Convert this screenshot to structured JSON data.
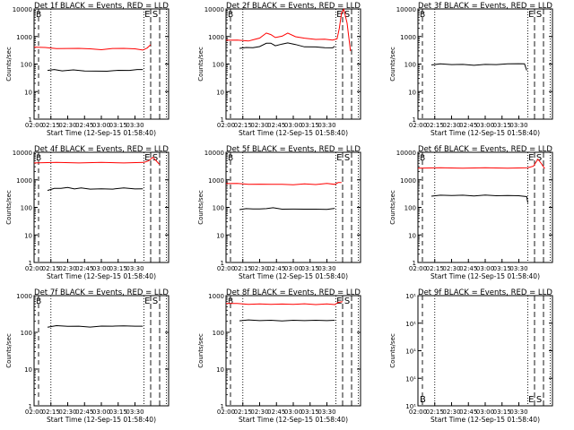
{
  "colors": {
    "events": "#000000",
    "lld": "#ff0000",
    "axes": "#000000",
    "background": "#ffffff"
  },
  "chart_data": [
    {
      "type": "line",
      "title": "Det 1f BLACK = Events, RED = LLD",
      "xlabel": "Start Time (12-Sep-15 01:58:40)",
      "ylabel": "Counts/sec",
      "xticks": [
        "02:00",
        "02:15",
        "02:30",
        "02:45",
        "03:00",
        "03:15",
        "03:30"
      ],
      "yticks": [
        "1",
        "10",
        "100",
        "1000",
        "10000"
      ],
      "yscale": "log",
      "ylim": [
        1,
        10000
      ],
      "markers": [
        "E",
        "S"
      ],
      "series": [
        {
          "color": "red",
          "points": [
            [
              0,
              420
            ],
            [
              10,
              390
            ],
            [
              20,
              370
            ],
            [
              30,
              360
            ],
            [
              40,
              380
            ],
            [
              50,
              350
            ],
            [
              60,
              340
            ],
            [
              70,
              360
            ],
            [
              80,
              380
            ],
            [
              90,
              350
            ],
            [
              97,
              330
            ],
            [
              101,
              380
            ],
            [
              104,
              520
            ]
          ]
        },
        {
          "color": "black",
          "points": [
            [
              12,
              60
            ],
            [
              18,
              62
            ],
            [
              25,
              58
            ],
            [
              35,
              60
            ],
            [
              45,
              57
            ],
            [
              55,
              54
            ],
            [
              65,
              56
            ],
            [
              75,
              58
            ],
            [
              85,
              60
            ],
            [
              92,
              62
            ],
            [
              97,
              65
            ]
          ]
        }
      ]
    },
    {
      "type": "line",
      "title": "Det 2f BLACK = Events, RED = LLD",
      "xlabel": "Start Time (12-Sep-15 01:58:40)",
      "ylabel": "Counts/sec",
      "xticks": [
        "02:00",
        "02:15",
        "02:30",
        "02:45",
        "03:00",
        "03:15",
        "03:30"
      ],
      "yticks": [
        "1",
        "10",
        "100",
        "1000",
        "10000"
      ],
      "yscale": "log",
      "ylim": [
        1,
        10000
      ],
      "markers": [
        "E",
        "S"
      ],
      "series": [
        {
          "color": "red",
          "points": [
            [
              0,
              750
            ],
            [
              10,
              720
            ],
            [
              20,
              700
            ],
            [
              25,
              760
            ],
            [
              30,
              900
            ],
            [
              36,
              1300
            ],
            [
              40,
              1200
            ],
            [
              44,
              900
            ],
            [
              50,
              1050
            ],
            [
              55,
              1300
            ],
            [
              62,
              1000
            ],
            [
              70,
              850
            ],
            [
              80,
              800
            ],
            [
              88,
              780
            ],
            [
              95,
              760
            ],
            [
              99,
              800
            ],
            [
              101,
              2000
            ],
            [
              103,
              7000
            ],
            [
              105,
              10000
            ],
            [
              108,
              3000
            ],
            [
              111,
              300
            ]
          ]
        },
        {
          "color": "black",
          "points": [
            [
              12,
              380
            ],
            [
              18,
              390
            ],
            [
              24,
              400
            ],
            [
              30,
              420
            ],
            [
              36,
              580
            ],
            [
              40,
              560
            ],
            [
              44,
              470
            ],
            [
              50,
              520
            ],
            [
              55,
              600
            ],
            [
              62,
              500
            ],
            [
              70,
              430
            ],
            [
              80,
              410
            ],
            [
              88,
              400
            ],
            [
              95,
              380
            ],
            [
              97,
              450
            ]
          ]
        }
      ]
    },
    {
      "type": "line",
      "title": "Det 3f BLACK = Events, RED = LLD",
      "xlabel": "Start Time (12-Sep-15 01:58:40)",
      "ylabel": "Counts/sec",
      "xticks": [
        "02:00",
        "02:15",
        "02:30",
        "02:45",
        "03:00",
        "03:15",
        "03:30"
      ],
      "yticks": [
        "1",
        "10",
        "100",
        "1000",
        "10000"
      ],
      "yscale": "log",
      "ylim": [
        1,
        10000
      ],
      "markers": [
        "E",
        "S"
      ],
      "series": [
        {
          "color": "black",
          "points": [
            [
              12,
              95
            ],
            [
              20,
              100
            ],
            [
              30,
              98
            ],
            [
              40,
              95
            ],
            [
              50,
              92
            ],
            [
              60,
              95
            ],
            [
              70,
              98
            ],
            [
              80,
              100
            ],
            [
              90,
              105
            ],
            [
              95,
              100
            ],
            [
              97,
              60
            ]
          ]
        }
      ]
    },
    {
      "type": "line",
      "title": "Det 4f BLACK = Events, RED = LLD",
      "xlabel": "Start Time (12-Sep-15 01:58:40)",
      "ylabel": "Counts/sec",
      "xticks": [
        "02:00",
        "02:15",
        "02:30",
        "02:45",
        "03:00",
        "03:15",
        "03:30"
      ],
      "yticks": [
        "1",
        "10",
        "100",
        "1000",
        "10000"
      ],
      "yscale": "log",
      "ylim": [
        1,
        10000
      ],
      "markers": [
        "E",
        "S"
      ],
      "series": [
        {
          "color": "red",
          "points": [
            [
              0,
              4200
            ],
            [
              20,
              4200
            ],
            [
              40,
              4200
            ],
            [
              60,
              4200
            ],
            [
              80,
              4200
            ],
            [
              98,
              4200
            ],
            [
              102,
              5000
            ],
            [
              106,
              6500
            ],
            [
              109,
              5000
            ],
            [
              112,
              3500
            ]
          ]
        },
        {
          "color": "black",
          "points": [
            [
              12,
              420
            ],
            [
              18,
              480
            ],
            [
              24,
              500
            ],
            [
              30,
              520
            ],
            [
              36,
              480
            ],
            [
              42,
              500
            ],
            [
              50,
              470
            ],
            [
              60,
              460
            ],
            [
              70,
              470
            ],
            [
              80,
              500
            ],
            [
              90,
              480
            ],
            [
              97,
              460
            ]
          ]
        }
      ]
    },
    {
      "type": "line",
      "title": "Det 5f BLACK = Events, RED = LLD",
      "xlabel": "Start Time (12-Sep-15 01:58:40)",
      "ylabel": "Counts/sec",
      "xticks": [
        "02:00",
        "02:15",
        "02:30",
        "02:45",
        "03:00",
        "03:15",
        "03:30"
      ],
      "yticks": [
        "1",
        "10",
        "100",
        "1000",
        "10000"
      ],
      "yscale": "log",
      "ylim": [
        1,
        10000
      ],
      "markers": [
        "E",
        "S"
      ],
      "series": [
        {
          "color": "red",
          "points": [
            [
              0,
              750
            ],
            [
              10,
              720
            ],
            [
              20,
              700
            ],
            [
              30,
              680
            ],
            [
              40,
              700
            ],
            [
              50,
              670
            ],
            [
              60,
              680
            ],
            [
              70,
              700
            ],
            [
              80,
              690
            ],
            [
              90,
              720
            ],
            [
              97,
              700
            ],
            [
              100,
              780
            ],
            [
              103,
              820
            ]
          ]
        },
        {
          "color": "black",
          "points": [
            [
              12,
              85
            ],
            [
              18,
              88
            ],
            [
              24,
              90
            ],
            [
              30,
              86
            ],
            [
              36,
              92
            ],
            [
              42,
              95
            ],
            [
              50,
              88
            ],
            [
              60,
              85
            ],
            [
              70,
              88
            ],
            [
              80,
              84
            ],
            [
              90,
              86
            ],
            [
              97,
              90
            ]
          ]
        }
      ]
    },
    {
      "type": "line",
      "title": "Det 6f BLACK = Events, RED = LLD",
      "xlabel": "Start Time (12-Sep-15 01:58:40)",
      "ylabel": "Counts/sec",
      "xticks": [
        "02:00",
        "02:15",
        "02:30",
        "02:45",
        "03:00",
        "03:15",
        "03:30"
      ],
      "yticks": [
        "1",
        "10",
        "100",
        "1000",
        "10000"
      ],
      "yscale": "log",
      "ylim": [
        1,
        10000
      ],
      "markers": [
        "E",
        "S"
      ],
      "series": [
        {
          "color": "red",
          "points": [
            [
              0,
              2700
            ],
            [
              20,
              2700
            ],
            [
              40,
              2700
            ],
            [
              60,
              2700
            ],
            [
              80,
              2700
            ],
            [
              98,
              2700
            ],
            [
              103,
              3200
            ],
            [
              107,
              5500
            ],
            [
              110,
              4000
            ],
            [
              113,
              2500
            ]
          ]
        },
        {
          "color": "black",
          "points": [
            [
              12,
              260
            ],
            [
              20,
              270
            ],
            [
              30,
              275
            ],
            [
              40,
              270
            ],
            [
              50,
              265
            ],
            [
              60,
              275
            ],
            [
              70,
              270
            ],
            [
              80,
              265
            ],
            [
              90,
              270
            ],
            [
              97,
              240
            ],
            [
              98,
              150
            ]
          ]
        }
      ]
    },
    {
      "type": "line",
      "title": "Det 7f BLACK = Events, RED = LLD",
      "xlabel": "Start Time (12-Sep-15 01:58:40)",
      "ylabel": "Counts/sec",
      "xticks": [
        "02:00",
        "02:15",
        "02:30",
        "02:45",
        "03:00",
        "03:15",
        "03:30"
      ],
      "yticks": [
        "1",
        "10",
        "100",
        "1000"
      ],
      "yscale": "log",
      "ylim": [
        1,
        1000
      ],
      "markers": [
        "E",
        "S"
      ],
      "series": [
        {
          "color": "black",
          "points": [
            [
              12,
              140
            ],
            [
              20,
              150
            ],
            [
              30,
              148
            ],
            [
              40,
              145
            ],
            [
              50,
              142
            ],
            [
              60,
              146
            ],
            [
              70,
              150
            ],
            [
              80,
              148
            ],
            [
              90,
              150
            ],
            [
              97,
              145
            ]
          ]
        }
      ]
    },
    {
      "type": "line",
      "title": "Det 8f BLACK = Events, RED = LLD",
      "xlabel": "Start Time (12-Sep-15 01:58:40)",
      "ylabel": "Counts/sec",
      "xticks": [
        "02:00",
        "02:15",
        "02:30",
        "02:45",
        "03:00",
        "03:15",
        "03:30"
      ],
      "yticks": [
        "1",
        "10",
        "100",
        "1000"
      ],
      "yscale": "log",
      "ylim": [
        1,
        1000
      ],
      "markers": [
        "E",
        "S"
      ],
      "series": [
        {
          "color": "red",
          "points": [
            [
              0,
              620
            ],
            [
              10,
              600
            ],
            [
              20,
              590
            ],
            [
              30,
              585
            ],
            [
              40,
              590
            ],
            [
              50,
              580
            ],
            [
              60,
              585
            ],
            [
              70,
              590
            ],
            [
              80,
              580
            ],
            [
              90,
              585
            ],
            [
              97,
              580
            ],
            [
              100,
              640
            ],
            [
              104,
              700
            ]
          ]
        },
        {
          "color": "black",
          "points": [
            [
              12,
              210
            ],
            [
              20,
              215
            ],
            [
              30,
              212
            ],
            [
              40,
              210
            ],
            [
              50,
              208
            ],
            [
              60,
              210
            ],
            [
              70,
              212
            ],
            [
              80,
              210
            ],
            [
              90,
              212
            ],
            [
              97,
              210
            ]
          ]
        }
      ]
    },
    {
      "type": "line",
      "title": "Det 9f BLACK = Events, RED = LLD",
      "xlabel": "Start Time (12-Sep-15 01:58:40)",
      "ylabel": "Counts/sec",
      "xticks": [
        "02:00",
        "02:15",
        "02:30",
        "02:45",
        "03:00",
        "03:15",
        "03:30"
      ],
      "yticks": [
        "10¹",
        "10¹",
        "10¹",
        "10¹",
        "10¹"
      ],
      "yscale": "log",
      "markers": [
        "B",
        "E",
        "S"
      ],
      "series": []
    }
  ]
}
